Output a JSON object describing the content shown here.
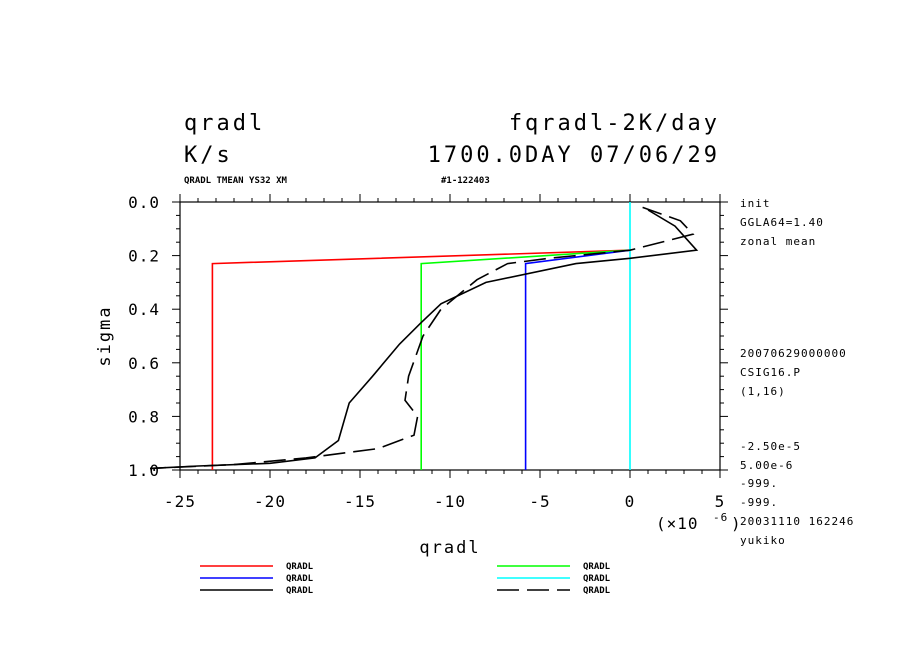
{
  "header": {
    "var_name": "qradl",
    "experiment": "fqradl-2K/day",
    "units": "K/s",
    "time": "1700.0DAY 07/06/29",
    "subtitle_left": "QRADL TMEAN YS32 XM",
    "subtitle_right": "#1-122403"
  },
  "side_info": {
    "top": [
      "init",
      "GGLA64=1.40",
      "zonal mean"
    ],
    "middle": [
      "20070629000000",
      "CSIG16.P",
      "(1,16)"
    ],
    "bottom": [
      "-2.50e-5",
      "5.00e-6",
      "-999.",
      "-999.",
      "20031110 162246",
      "yukiko"
    ]
  },
  "chart_data": {
    "type": "line",
    "xlabel": "qradl",
    "ylabel": "sigma",
    "x_scale_label": "(×10",
    "x_scale_exp": "-6",
    "x_scale_close": ")",
    "xlim": [
      -25,
      5
    ],
    "ylim": [
      0.0,
      1.0
    ],
    "y_inverted": true,
    "x_ticks": [
      "-25",
      "-20",
      "-15",
      "-10",
      "-5",
      "0",
      "5"
    ],
    "x_tick_values": [
      -25,
      -20,
      -15,
      -10,
      -5,
      0,
      5
    ],
    "y_ticks": [
      "0.0",
      "0.2",
      "0.4",
      "0.6",
      "0.8",
      "1.0"
    ],
    "y_tick_values": [
      0.0,
      0.2,
      0.4,
      0.6,
      0.8,
      1.0
    ],
    "series": [
      {
        "name": "QRADL",
        "color": "#ff0000",
        "dash": "solid",
        "points": [
          [
            0,
            0.18
          ],
          [
            -23.2,
            0.23
          ],
          [
            -23.2,
            1.0
          ]
        ]
      },
      {
        "name": "QRADL",
        "color": "#00ff00",
        "dash": "solid",
        "points": [
          [
            0,
            0.18
          ],
          [
            -11.6,
            0.23
          ],
          [
            -11.6,
            1.0
          ]
        ]
      },
      {
        "name": "QRADL",
        "color": "#0000ff",
        "dash": "solid",
        "points": [
          [
            0,
            0.18
          ],
          [
            -5.8,
            0.23
          ],
          [
            -5.8,
            1.0
          ]
        ]
      },
      {
        "name": "QRADL",
        "color": "#00ffff",
        "dash": "solid",
        "points": [
          [
            0,
            0.0
          ],
          [
            0,
            1.0
          ]
        ]
      },
      {
        "name": "QRADL",
        "color": "#000000",
        "dash": "solid",
        "points": [
          [
            -27,
            0.995
          ],
          [
            -24,
            0.985
          ],
          [
            -20,
            0.975
          ],
          [
            -17.5,
            0.955
          ],
          [
            -16.2,
            0.89
          ],
          [
            -15.6,
            0.75
          ],
          [
            -15.6,
            0.75
          ],
          [
            -14.3,
            0.65
          ],
          [
            -12.8,
            0.53
          ],
          [
            -11.6,
            0.45
          ],
          [
            -10.5,
            0.38
          ],
          [
            -8,
            0.3
          ],
          [
            -3,
            0.23
          ],
          [
            0,
            0.21
          ],
          [
            3.7,
            0.18
          ],
          [
            2.5,
            0.09
          ],
          [
            1,
            0.03
          ]
        ]
      },
      {
        "name": "QRADL",
        "color": "#000000",
        "dash": "dashed",
        "points": [
          [
            -27,
            0.995
          ],
          [
            -22,
            0.98
          ],
          [
            -18,
            0.955
          ],
          [
            -14,
            0.92
          ],
          [
            -12,
            0.87
          ],
          [
            -11.8,
            0.8
          ],
          [
            -12.5,
            0.74
          ],
          [
            -12.3,
            0.65
          ],
          [
            -11.5,
            0.5
          ],
          [
            -10.5,
            0.4
          ],
          [
            -8.5,
            0.29
          ],
          [
            -6.8,
            0.23
          ],
          [
            -4.5,
            0.21
          ],
          [
            0,
            0.18
          ],
          [
            3.5,
            0.12
          ],
          [
            2.8,
            0.07
          ],
          [
            0.7,
            0.02
          ]
        ]
      }
    ]
  },
  "legend": {
    "items": [
      {
        "label": "QRADL",
        "color": "#ff0000",
        "dash": "solid"
      },
      {
        "label": "QRADL",
        "color": "#0000ff",
        "dash": "solid"
      },
      {
        "label": "QRADL",
        "color": "#000000",
        "dash": "solid"
      },
      {
        "label": "QRADL",
        "color": "#00ff00",
        "dash": "solid"
      },
      {
        "label": "QRADL",
        "color": "#00ffff",
        "dash": "solid"
      },
      {
        "label": "QRADL",
        "color": "#000000",
        "dash": "dashed"
      }
    ]
  }
}
